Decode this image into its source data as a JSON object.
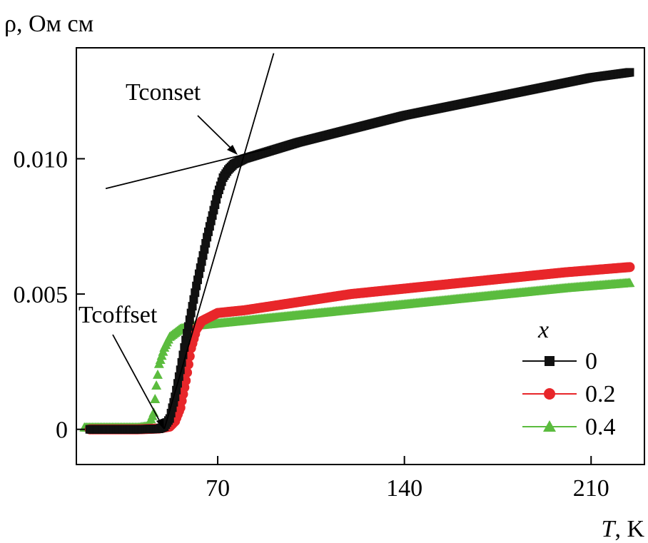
{
  "chart_data": {
    "type": "scatter",
    "ylabel": "ρ, Ом см",
    "xlabel_symbol": "T",
    "xlabel_unit": ", K",
    "xlim": [
      17,
      230
    ],
    "ylim": [
      -0.0013,
      0.0141
    ],
    "x_ticks": [
      70,
      140,
      210
    ],
    "x_tick_labels": [
      "70",
      "140",
      "210"
    ],
    "y_ticks": [
      0,
      0.005,
      0.01
    ],
    "y_tick_labels": [
      "0",
      "0.005",
      "0.010"
    ],
    "legend": {
      "title": "x",
      "placement": "bottom-right"
    },
    "series": [
      {
        "name": "0",
        "color": "#111111",
        "marker": "square",
        "points": [
          [
            22,
            0
          ],
          [
            40,
            0
          ],
          [
            48,
            2e-05
          ],
          [
            50,
            0.0001
          ],
          [
            52,
            0.0004
          ],
          [
            54,
            0.0012
          ],
          [
            56,
            0.0022
          ],
          [
            58,
            0.0033
          ],
          [
            60,
            0.0043
          ],
          [
            62,
            0.0053
          ],
          [
            64,
            0.0062
          ],
          [
            66,
            0.0071
          ],
          [
            68,
            0.0079
          ],
          [
            70,
            0.0087
          ],
          [
            72,
            0.0093
          ],
          [
            74,
            0.0096
          ],
          [
            76,
            0.0098
          ],
          [
            80,
            0.01
          ],
          [
            90,
            0.0103
          ],
          [
            100,
            0.0106
          ],
          [
            120,
            0.0111
          ],
          [
            140,
            0.0116
          ],
          [
            160,
            0.012
          ],
          [
            180,
            0.0124
          ],
          [
            200,
            0.0128
          ],
          [
            210,
            0.013
          ],
          [
            225,
            0.0132
          ]
        ]
      },
      {
        "name": "0.2",
        "color": "#e8262a",
        "marker": "circle",
        "points": [
          [
            22,
            0
          ],
          [
            40,
            0
          ],
          [
            48,
            3e-05
          ],
          [
            52,
            0.0001
          ],
          [
            54,
            0.0003
          ],
          [
            56,
            0.0008
          ],
          [
            58,
            0.0018
          ],
          [
            60,
            0.003
          ],
          [
            62,
            0.0037
          ],
          [
            64,
            0.004
          ],
          [
            66,
            0.0041
          ],
          [
            70,
            0.0043
          ],
          [
            80,
            0.0044
          ],
          [
            100,
            0.0047
          ],
          [
            120,
            0.005
          ],
          [
            140,
            0.0052
          ],
          [
            160,
            0.0054
          ],
          [
            180,
            0.0056
          ],
          [
            200,
            0.0058
          ],
          [
            225,
            0.006
          ]
        ]
      },
      {
        "name": "0.4",
        "color": "#5bbc3e",
        "marker": "triangle",
        "points": [
          [
            20,
            5e-05
          ],
          [
            30,
            5e-05
          ],
          [
            40,
            5e-05
          ],
          [
            44,
            0.0001
          ],
          [
            46,
            0.0006
          ],
          [
            47,
            0.0016
          ],
          [
            48,
            0.0024
          ],
          [
            50,
            0.003
          ],
          [
            52,
            0.0034
          ],
          [
            56,
            0.0037
          ],
          [
            60,
            0.0038
          ],
          [
            70,
            0.0039
          ],
          [
            80,
            0.004
          ],
          [
            100,
            0.0042
          ],
          [
            120,
            0.0044
          ],
          [
            140,
            0.0046
          ],
          [
            160,
            0.0048
          ],
          [
            180,
            0.005
          ],
          [
            200,
            0.0052
          ],
          [
            225,
            0.0054
          ]
        ]
      }
    ],
    "annotations": [
      {
        "text": "Tconset"
      },
      {
        "text": "Tcoffset"
      }
    ],
    "guide_lines": [
      {
        "x1": 28,
        "y1": 0.0089,
        "x2": 90,
        "y2": 0.0104
      },
      {
        "x1": 50,
        "y1": 2e-05,
        "x2": 91,
        "y2": 0.0139
      }
    ]
  }
}
